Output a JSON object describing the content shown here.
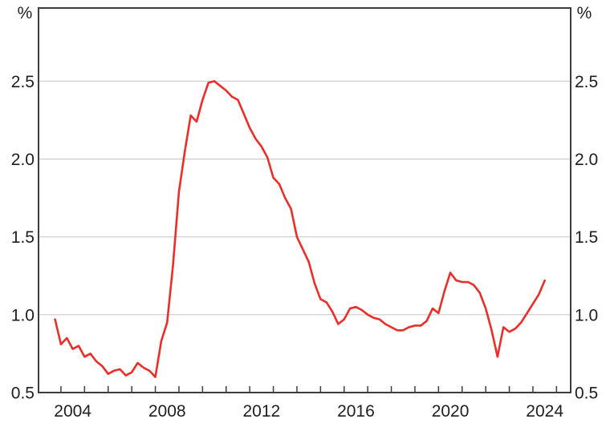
{
  "chart_data": {
    "type": "line",
    "title": "",
    "unit_label_left": "%",
    "unit_label_right": "%",
    "grid": true,
    "legend": "none",
    "x_axis": {
      "range": [
        2003.05,
        2025.6
      ],
      "minor_tick_years": [
        2004,
        2005,
        2006,
        2007,
        2008,
        2009,
        2010,
        2011,
        2012,
        2013,
        2014,
        2015,
        2016,
        2017,
        2018,
        2019,
        2020,
        2021,
        2022,
        2023,
        2024,
        2025
      ],
      "label_years": [
        "2004",
        "2008",
        "2012",
        "2016",
        "2020",
        "2024"
      ],
      "labels_centered_mid_year": true
    },
    "y_axis": {
      "range": [
        0.5,
        2.97
      ],
      "tick_labels": [
        "0.5",
        "1.0",
        "1.5",
        "2.0",
        "2.5"
      ],
      "tick_values": [
        0.5,
        1.0,
        1.5,
        2.0,
        2.5
      ],
      "gridline_values": [
        1.0,
        1.5,
        2.0,
        2.5
      ],
      "sides": "both"
    },
    "series": [
      {
        "name": "rate-percent",
        "frequency": "quarterly",
        "x_start_year": 2003.75,
        "x_step_years": 0.25,
        "values": [
          0.97,
          0.81,
          0.85,
          0.78,
          0.8,
          0.73,
          0.75,
          0.7,
          0.67,
          0.62,
          0.64,
          0.65,
          0.61,
          0.63,
          0.69,
          0.66,
          0.64,
          0.6,
          0.83,
          0.95,
          1.32,
          1.79,
          2.05,
          2.28,
          2.24,
          2.38,
          2.49,
          2.5,
          2.47,
          2.44,
          2.4,
          2.38,
          2.29,
          2.2,
          2.13,
          2.08,
          2.01,
          1.88,
          1.84,
          1.75,
          1.68,
          1.5,
          1.42,
          1.34,
          1.2,
          1.1,
          1.08,
          1.02,
          0.94,
          0.97,
          1.04,
          1.05,
          1.03,
          1.0,
          0.98,
          0.97,
          0.94,
          0.92,
          0.9,
          0.9,
          0.92,
          0.93,
          0.93,
          0.96,
          1.04,
          1.01,
          1.15,
          1.27,
          1.22,
          1.21,
          1.21,
          1.19,
          1.14,
          1.04,
          0.9,
          0.73,
          0.92,
          0.89,
          0.91,
          0.95,
          1.01,
          1.07,
          1.13,
          1.22
        ]
      }
    ]
  },
  "colors": {
    "line": "#ed2d28",
    "grid": "#cccccc",
    "frame": "#3d3d3d",
    "text": "#1e1e1e",
    "background": "#ffffff"
  }
}
